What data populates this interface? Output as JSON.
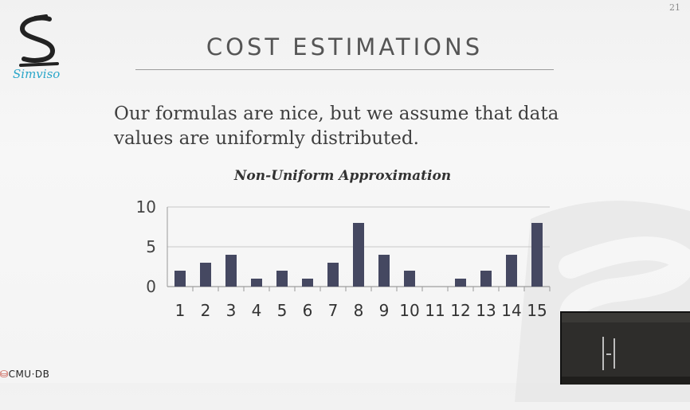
{
  "slide": {
    "page_number": "21",
    "logo_text": "Simviso",
    "title": "COST ESTIMATIONS",
    "body_line1": "Our formulas are nice, but we assume that data",
    "body_line2": "values are uniformly distributed.",
    "footer_label": "CMU·DB"
  },
  "colors": {
    "bar": "#454861",
    "grid": "#c8c8c8",
    "logo": "#2aa6c9"
  },
  "chart_data": {
    "type": "bar",
    "title": "Non-Uniform Approximation",
    "categories": [
      "1",
      "2",
      "3",
      "4",
      "5",
      "6",
      "7",
      "8",
      "9",
      "10",
      "11",
      "12",
      "13",
      "14",
      "15"
    ],
    "values": [
      2,
      3,
      4,
      1,
      2,
      1,
      3,
      8,
      4,
      2,
      0,
      1,
      2,
      4,
      8
    ],
    "yticks": [
      "0",
      "5",
      "10"
    ],
    "ylim": [
      0,
      10
    ],
    "grid": true,
    "xlabel": "",
    "ylabel": ""
  }
}
